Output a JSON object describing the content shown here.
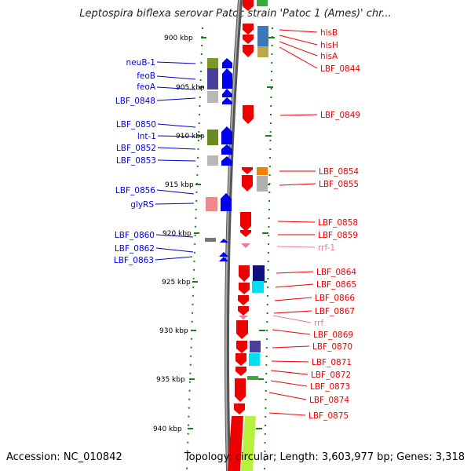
{
  "title": "Leptospira biflexa serovar Patoc strain 'Patoc 1 (Ames)' chr...",
  "footer": {
    "accession": "Accession: NC_010842",
    "topology": "Topology: circular; Length: 3,603,977 bp; Genes: 3,318"
  },
  "ticks": [
    {
      "label": "900 kbp"
    },
    {
      "label": "905 kbp"
    },
    {
      "label": "910 kbp"
    },
    {
      "label": "915 kbp"
    },
    {
      "label": "920 kbp"
    },
    {
      "label": "925 kbp"
    },
    {
      "label": "930 kbp"
    },
    {
      "label": "935 kbp"
    },
    {
      "label": "940 kbp"
    }
  ],
  "left_genes": [
    {
      "label": "neuB-1"
    },
    {
      "label": "feoB"
    },
    {
      "label": "feoA"
    },
    {
      "label": "LBF_0848"
    },
    {
      "label": "LBF_0850"
    },
    {
      "label": "lnt-1"
    },
    {
      "label": "LBF_0852"
    },
    {
      "label": "LBF_0853"
    },
    {
      "label": "LBF_0856"
    },
    {
      "label": "glyRS"
    },
    {
      "label": "LBF_0860"
    },
    {
      "label": "LBF_0862"
    },
    {
      "label": "LBF_0863"
    }
  ],
  "right_genes": [
    {
      "label": "hisB"
    },
    {
      "label": "hisH"
    },
    {
      "label": "hisA"
    },
    {
      "label": "LBF_0844"
    },
    {
      "label": "LBF_0849"
    },
    {
      "label": "LBF_0854"
    },
    {
      "label": "LBF_0855"
    },
    {
      "label": "LBF_0858"
    },
    {
      "label": "LBF_0859"
    },
    {
      "label": "rrf-1"
    },
    {
      "label": "LBF_0864"
    },
    {
      "label": "LBF_0865"
    },
    {
      "label": "LBF_0866"
    },
    {
      "label": "LBF_0867"
    },
    {
      "label": "rrf"
    },
    {
      "label": "LBF_0869"
    },
    {
      "label": "LBF_0870"
    },
    {
      "label": "LBF_0871"
    },
    {
      "label": "LBF_0872"
    },
    {
      "label": "LBF_0873"
    },
    {
      "label": "LBF_0874"
    },
    {
      "label": "LBF_0875"
    }
  ],
  "colors": {
    "forward_strand": "#0000ee",
    "reverse_strand": "#ee0000",
    "rna_label": "#e87aa0",
    "backbone": "#8a8a8a",
    "tick": "#1a7f1a"
  }
}
